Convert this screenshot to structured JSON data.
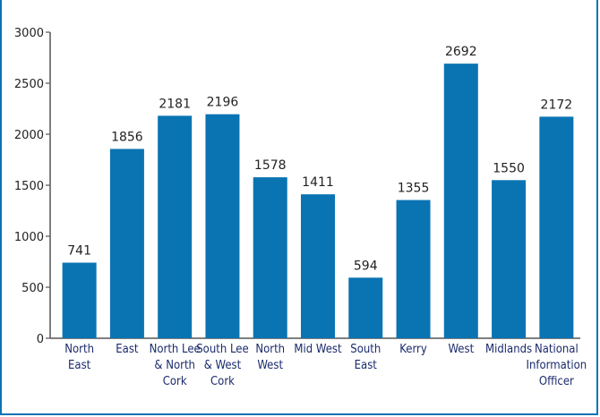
{
  "chart_data": {
    "type": "bar",
    "title": "",
    "xlabel": "",
    "ylabel": "",
    "ylim": [
      0,
      3000
    ],
    "yticks": [
      0,
      500,
      1000,
      1500,
      2000,
      2500,
      3000
    ],
    "categories": [
      [
        "North",
        "East"
      ],
      [
        "East"
      ],
      [
        "North Lee",
        "& North",
        "Cork"
      ],
      [
        "South Lee",
        "& West",
        "Cork"
      ],
      [
        "North",
        "West"
      ],
      [
        "Mid West"
      ],
      [
        "South",
        "East"
      ],
      [
        "Kerry"
      ],
      [
        "West"
      ],
      [
        "Midlands"
      ],
      [
        "National",
        "Information",
        "Officer"
      ]
    ],
    "values": [
      741,
      1856,
      2181,
      2196,
      1578,
      1411,
      594,
      1355,
      2692,
      1550,
      2172
    ],
    "bar_color": "#0a74b3",
    "border_color": "#0a74b3",
    "grid": false,
    "legend": "none"
  }
}
